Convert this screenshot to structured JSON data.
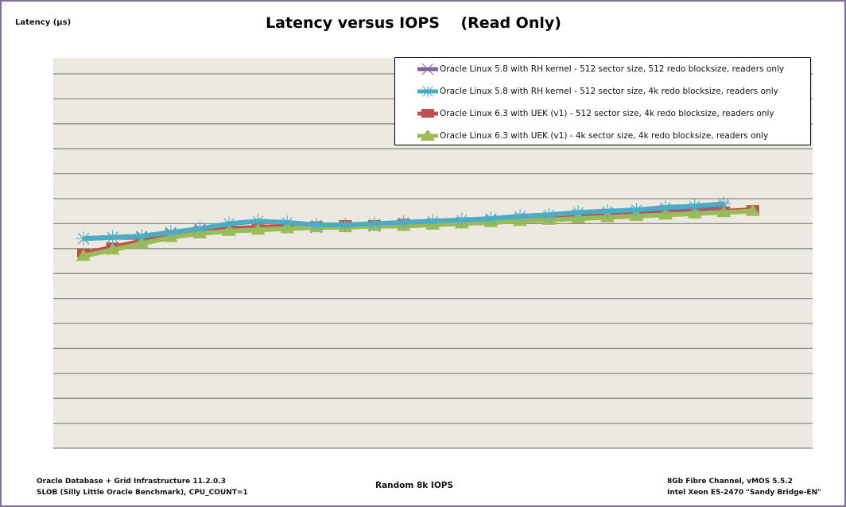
{
  "chart_data": {
    "type": "line",
    "title": "Latency versus IOPS    (Read Only)",
    "ylabel": "Latency (µs)",
    "xlabel": "Random 8k IOPS",
    "y_tick_labels_visible": false,
    "x_tick_labels_visible": false,
    "units_note": "No axis tick labels are rendered; y values expressed in gridline units (0 = plot bottom, 1 = one gridline interval), x as sample index.",
    "ylim": [
      0,
      15.6
    ],
    "gridlines": {
      "horizontal": true,
      "count": 15
    },
    "legend_position": "top-right (inside plot)",
    "x": [
      1,
      2,
      3,
      4,
      5,
      6,
      7,
      8,
      9,
      10,
      11,
      12,
      13,
      14,
      15,
      16,
      17,
      18,
      19,
      20,
      21,
      22,
      23,
      24
    ],
    "series": [
      {
        "name": "Oracle Linux 5.8 with RH kernel - 512 sector size, 512 redo blocksize, readers only",
        "color": "#8064a2",
        "marker": "x",
        "values": [
          8.4,
          8.45,
          8.45,
          8.6,
          8.75,
          8.8,
          8.85,
          8.85,
          8.85,
          8.9,
          8.9,
          8.95,
          9.0,
          9.05,
          9.15,
          9.2,
          9.25,
          9.35,
          9.4,
          9.45,
          9.55,
          9.6,
          9.7
        ]
      },
      {
        "name": "Oracle Linux 5.8 with RH kernel - 512 sector size, 4k redo blocksize, readers only",
        "color": "#4bacc6",
        "marker": "star",
        "values": [
          8.4,
          8.45,
          8.5,
          8.65,
          8.8,
          9.0,
          9.1,
          9.05,
          8.95,
          8.95,
          9.0,
          9.05,
          9.1,
          9.15,
          9.2,
          9.3,
          9.35,
          9.45,
          9.5,
          9.55,
          9.65,
          9.7,
          9.8
        ]
      },
      {
        "name": "Oracle Linux 6.3 with UEK (v1) - 512 sector size, 4k redo blocksize, readers only",
        "color": "#c0504d",
        "marker": "square",
        "values": [
          7.8,
          8.05,
          8.3,
          8.55,
          8.7,
          8.8,
          8.85,
          8.9,
          8.9,
          8.95,
          8.95,
          9.0,
          9.0,
          9.05,
          9.1,
          9.15,
          9.2,
          9.25,
          9.3,
          9.35,
          9.4,
          9.45,
          9.5,
          9.55
        ]
      },
      {
        "name": "Oracle Linux 6.3 with UEK (v1) - 4k sector size, 4k redo blocksize, readers only",
        "color": "#9bbb59",
        "marker": "triangle",
        "values": [
          7.7,
          7.95,
          8.2,
          8.45,
          8.6,
          8.7,
          8.75,
          8.8,
          8.85,
          8.85,
          8.9,
          8.9,
          8.95,
          9.0,
          9.05,
          9.1,
          9.15,
          9.2,
          9.25,
          9.3,
          9.35,
          9.4,
          9.45,
          9.5
        ]
      }
    ]
  },
  "header": {
    "ylabel": "Latency (µs)",
    "title": "Latency versus IOPS    (Read Only)"
  },
  "legend": {
    "items": [
      {
        "label": "Oracle Linux 5.8 with RH kernel - 512 sector size, 512 redo blocksize, readers only",
        "color": "#8064a2"
      },
      {
        "label": "Oracle Linux 5.8 with RH kernel - 512 sector size, 4k redo blocksize, readers only",
        "color": "#4bacc6"
      },
      {
        "label": "Oracle Linux 6.3 with UEK (v1) - 512 sector size, 4k redo blocksize, readers only",
        "color": "#c0504d"
      },
      {
        "label": "Oracle Linux 6.3 with UEK (v1) - 4k sector size, 4k redo blocksize, readers only",
        "color": "#9bbb59"
      }
    ]
  },
  "footer": {
    "left_line1": "Oracle Database + Grid Infrastructure 11.2.0.3",
    "left_line2": "SLOB (Silly Little Oracle Benchmark), CPU_COUNT=1",
    "center": "Random 8k IOPS",
    "right_line1": "8Gb Fibre Channel, vMOS 5.5.2",
    "right_line2": "Intel Xeon E5-2470 \"Sandy Bridge-EN\""
  },
  "colors": {
    "plot_background": "#eceae0",
    "gridline": "#8a8a8a",
    "frame_border": "#7f6f97"
  }
}
